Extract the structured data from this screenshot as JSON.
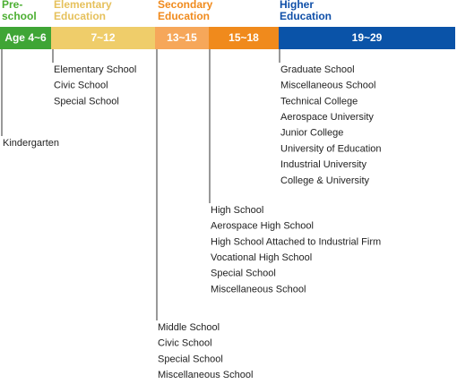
{
  "headers": [
    {
      "lines": [
        "Pre-",
        "school"
      ]
    },
    {
      "lines": [
        "Elementary",
        "Education"
      ]
    },
    {
      "lines": [
        "Secondary",
        "Education"
      ]
    },
    {
      "lines": [
        "Higher",
        "Education"
      ]
    }
  ],
  "segments": [
    "Age 4~6",
    "7~12",
    "13~15",
    "15~18",
    "19~29"
  ],
  "groups": [
    {
      "items": [
        "Kindergarten"
      ]
    },
    {
      "items": [
        "Elementary School",
        "Civic School",
        "Special School"
      ]
    },
    {
      "items": [
        "Middle School",
        "Civic School",
        "Special School",
        "Miscellaneous School"
      ]
    },
    {
      "items": [
        "High School",
        "Aerospace High School",
        "High School Attached to Industrial Firm",
        "Vocational High School",
        "Special School",
        "Miscellaneous School"
      ]
    },
    {
      "items": [
        "Graduate School",
        "Miscellaneous School",
        "Technical College",
        "Aerospace University",
        "Junior College",
        "University of Education",
        "Industrial University",
        "College & University"
      ]
    }
  ]
}
